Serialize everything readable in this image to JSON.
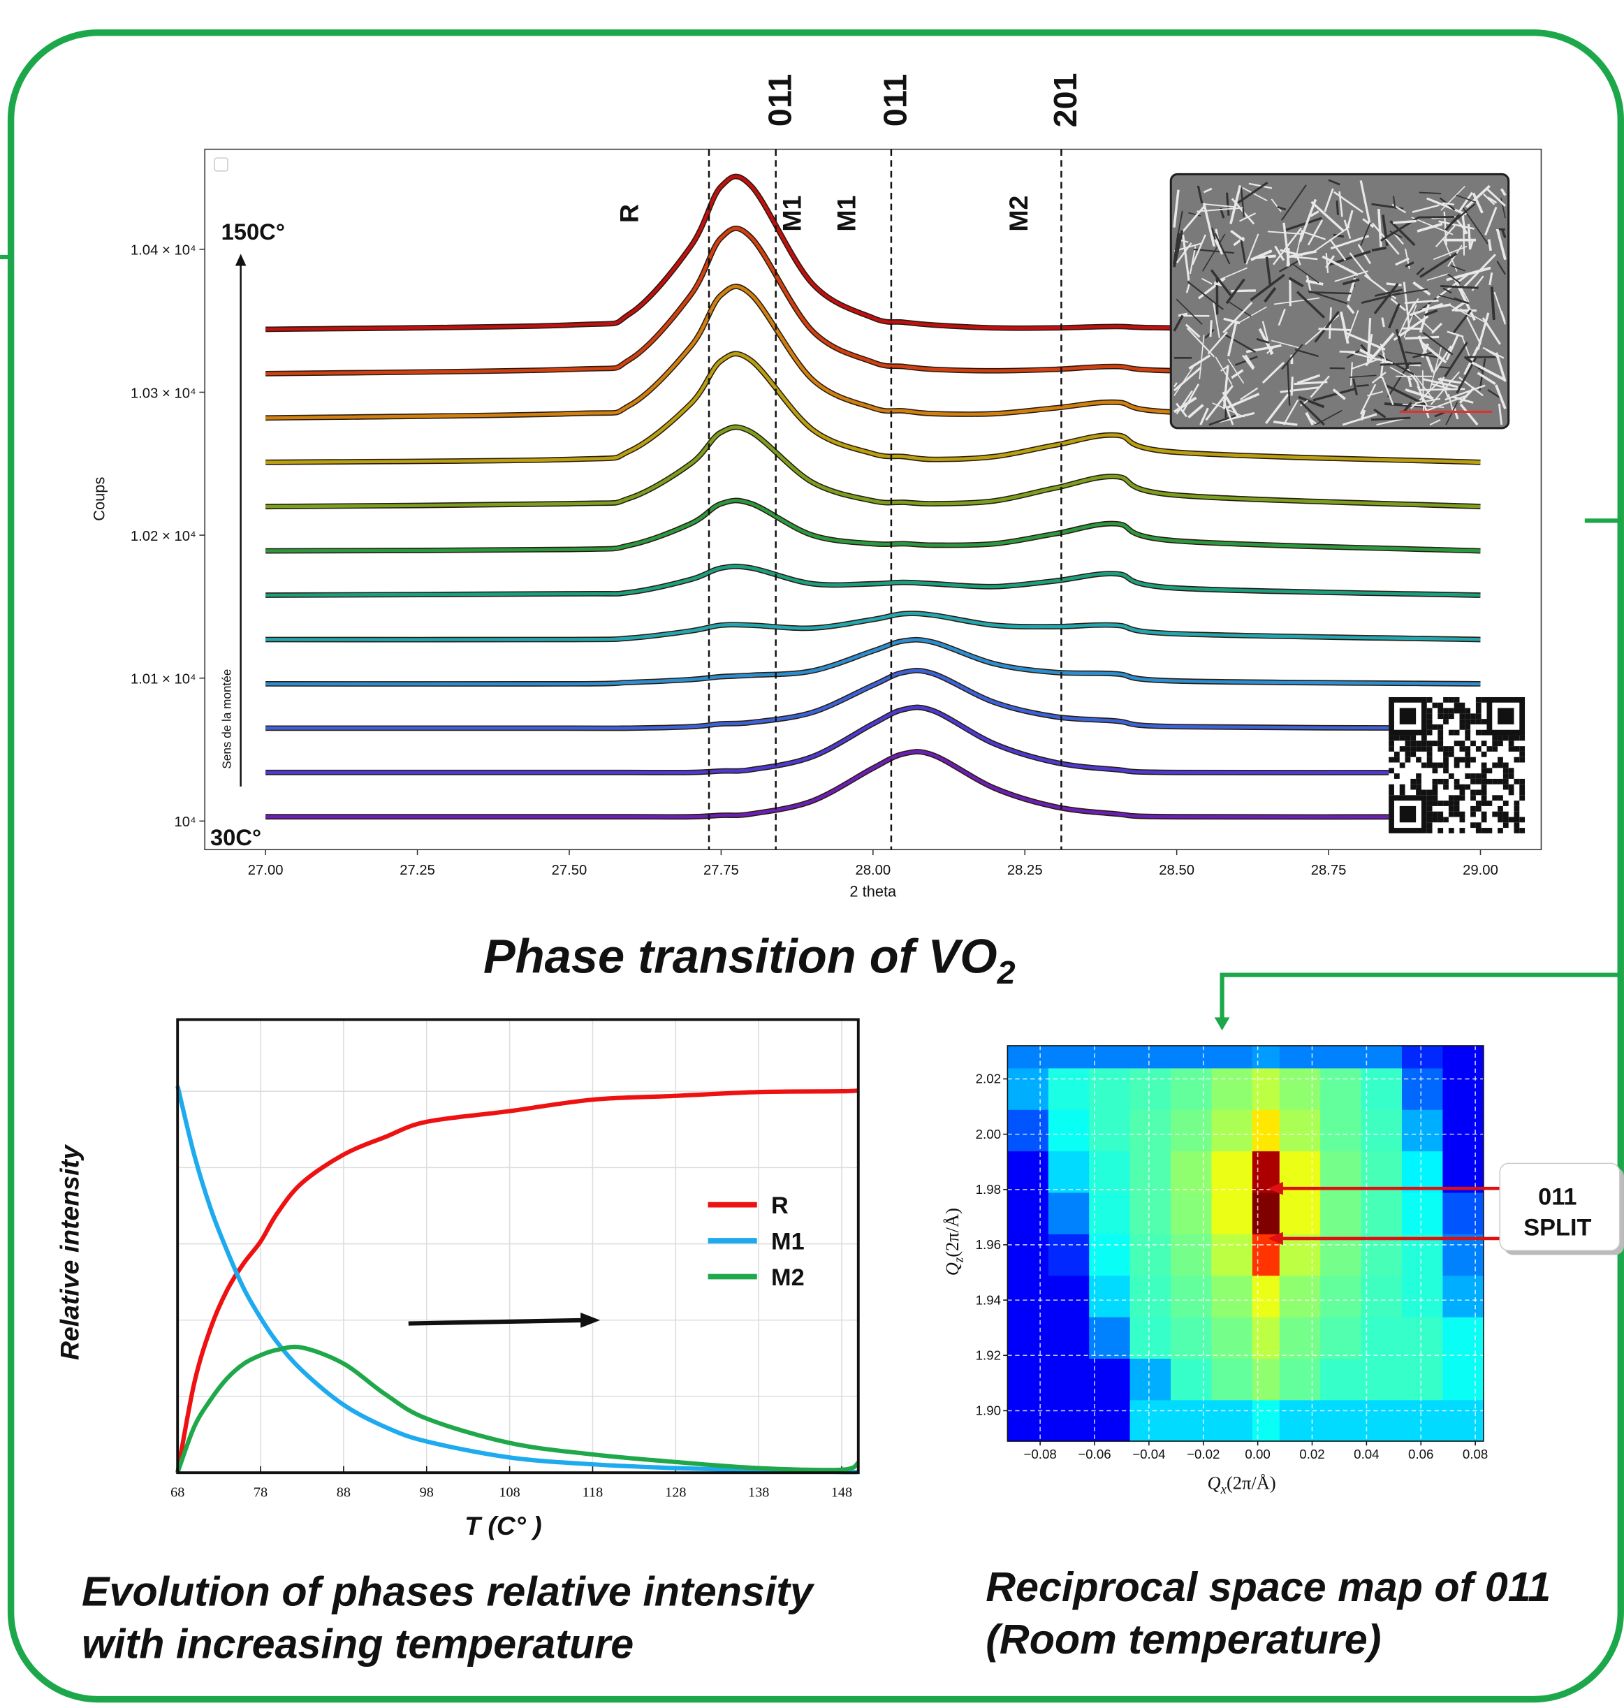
{
  "chart_data": [
    {
      "type": "line",
      "title": [
        "Phase transition of VO",
        "2"
      ],
      "xlabel": "2 theta",
      "ylabel": "Coups",
      "x": [
        27.0,
        27.5,
        27.6,
        27.7,
        27.75,
        27.8,
        27.9,
        28.0,
        28.05,
        28.1,
        28.2,
        28.3,
        28.4,
        28.5,
        29.0
      ],
      "xlim": [
        26.9,
        29.1
      ],
      "ylim": [
        9980,
        10470
      ],
      "xticks": [
        {
          "value": 27,
          "label": "27.00"
        },
        27.25,
        {
          "value": 27.5,
          "label": "27.50"
        },
        27.75,
        {
          "value": 28,
          "label": "28.00"
        },
        28.25,
        {
          "value": 28.5,
          "label": "28.50"
        },
        28.75,
        {
          "value": 29,
          "label": "29.00"
        }
      ],
      "yticks": [
        {
          "value": 10000,
          "label": "10⁴"
        },
        {
          "value": 10100,
          "label": "1.01 × 10⁴"
        },
        {
          "value": 10200,
          "label": "1.02 × 10⁴"
        },
        {
          "value": 10300,
          "label": "1.03 × 10⁴"
        },
        {
          "value": 10400,
          "label": "1.04 × 10⁴"
        }
      ],
      "grid": false,
      "series": [
        {
          "color": "#6a1fb5",
          "values": [
            10003,
            10003,
            10003,
            10003,
            10004,
            10005,
            10014,
            10037,
            10047,
            10046,
            10023,
            10010,
            10005,
            10003,
            10003
          ]
        },
        {
          "color": "#4b3bd0",
          "values": [
            10034,
            10034,
            10034,
            10034,
            10035,
            10036,
            10045,
            10068,
            10078,
            10077,
            10054,
            10041,
            10036,
            10034,
            10034
          ]
        },
        {
          "color": "#3a63d8",
          "values": [
            10065,
            10065,
            10065,
            10066,
            10068,
            10069,
            10076,
            10095,
            10104,
            10103,
            10083,
            10073,
            10070,
            10066,
            10065
          ]
        },
        {
          "color": "#2a8ed0",
          "values": [
            10096,
            10096,
            10097,
            10099,
            10101,
            10102,
            10105,
            10119,
            10126,
            10125,
            10110,
            10104,
            10103,
            10098,
            10096
          ]
        },
        {
          "color": "#22a6b0",
          "values": [
            10127,
            10127,
            10128,
            10133,
            10137,
            10137,
            10135,
            10141,
            10145,
            10144,
            10137,
            10136,
            10137,
            10131,
            10127
          ]
        },
        {
          "color": "#1aa080",
          "values": [
            10158,
            10159,
            10160,
            10169,
            10177,
            10177,
            10166,
            10166,
            10167,
            10166,
            10164,
            10168,
            10173,
            10163,
            10158
          ]
        },
        {
          "color": "#2a9a40",
          "values": [
            10189,
            10190,
            10193,
            10208,
            10222,
            10222,
            10200,
            10194,
            10194,
            10193,
            10194,
            10201,
            10208,
            10196,
            10189
          ]
        },
        {
          "color": "#7aa020",
          "values": [
            10220,
            10222,
            10226,
            10250,
            10272,
            10272,
            10237,
            10224,
            10223,
            10222,
            10224,
            10233,
            10241,
            10228,
            10220
          ]
        },
        {
          "color": "#b8a010",
          "values": [
            10251,
            10253,
            10259,
            10292,
            10322,
            10322,
            10274,
            10257,
            10255,
            10253,
            10255,
            10263,
            10270,
            10258,
            10251
          ]
        },
        {
          "color": "#d08010",
          "values": [
            10282,
            10285,
            10291,
            10332,
            10368,
            10368,
            10309,
            10289,
            10287,
            10285,
            10285,
            10289,
            10293,
            10286,
            10282
          ]
        },
        {
          "color": "#d04010",
          "values": [
            10313,
            10316,
            10323,
            10368,
            10408,
            10408,
            10343,
            10321,
            10318,
            10316,
            10315,
            10316,
            10318,
            10315,
            10313
          ]
        },
        {
          "color": "#c01010",
          "values": [
            10344,
            10347,
            10355,
            10402,
            10444,
            10444,
            10376,
            10352,
            10349,
            10347,
            10345,
            10345,
            10346,
            10345,
            10344
          ]
        }
      ],
      "reference_lines": [
        {
          "x": 27.73,
          "label": "R"
        },
        {
          "x": 27.84,
          "label": "M1",
          "top_label": "011"
        },
        {
          "x": 28.03,
          "label": "M1",
          "top_label": "011"
        },
        {
          "x": 28.31,
          "label": "M2",
          "top_label": "201"
        }
      ],
      "annotations": {
        "top_temp": "150C°",
        "bottom_temp": "30C°",
        "arrow_label": "Sens de la montée"
      }
    },
    {
      "type": "line",
      "caption": [
        "Evolution of phases relative intensity",
        "with increasing temperature"
      ],
      "xlabel": "T (C° )",
      "ylabel": "Relative intensity",
      "x": [
        68,
        70,
        72,
        74,
        76,
        78,
        80,
        83,
        88,
        93,
        98,
        108,
        118,
        128,
        138,
        148,
        150
      ],
      "xlim": [
        68,
        150
      ],
      "ylim": [
        0,
        5.94
      ],
      "xticks": [
        68,
        78,
        88,
        98,
        108,
        118,
        128,
        138,
        148
      ],
      "yticks": [
        0,
        1,
        2,
        3,
        4,
        5
      ],
      "ytick_labels": false,
      "grid": true,
      "legend": "right",
      "series": [
        {
          "name": "R",
          "color": "#ee1111",
          "values": [
            0,
            1.17,
            1.9,
            2.4,
            2.75,
            3.03,
            3.4,
            3.8,
            4.17,
            4.4,
            4.6,
            4.74,
            4.89,
            4.94,
            4.99,
            5.0,
            5.01
          ]
        },
        {
          "name": "M1",
          "color": "#1eaaee",
          "values": [
            5.07,
            4.17,
            3.46,
            2.9,
            2.41,
            2.03,
            1.71,
            1.34,
            0.89,
            0.6,
            0.41,
            0.2,
            0.11,
            0.06,
            0.03,
            0.01,
            0.01
          ]
        },
        {
          "name": "M2",
          "color": "#1fa84a",
          "values": [
            0,
            0.6,
            0.96,
            1.24,
            1.43,
            1.54,
            1.61,
            1.64,
            1.43,
            1.03,
            0.71,
            0.39,
            0.24,
            0.14,
            0.06,
            0.04,
            0.13
          ]
        }
      ]
    },
    {
      "type": "heatmap",
      "caption": [
        "Reciprocal space map of 011",
        "(Room temperature)"
      ],
      "xlabel": [
        "Q",
        "x",
        "(2π/Å)"
      ],
      "ylabel": [
        "Q",
        "z",
        "(2π/Å)"
      ],
      "xlim": [
        -0.092,
        0.083
      ],
      "ylim": [
        1.889,
        2.032
      ],
      "xticks": [
        {
          "value": -0.08,
          "label": "−0.08"
        },
        {
          "value": -0.06,
          "label": "−0.06"
        },
        {
          "value": -0.04,
          "label": "−0.04"
        },
        {
          "value": -0.02,
          "label": "−0.02"
        },
        {
          "value": 0,
          "label": "0.00"
        },
        0.02,
        0.04,
        0.06,
        0.08
      ],
      "yticks": [
        {
          "value": 1.9,
          "label": "1.90"
        },
        1.92,
        1.94,
        1.96,
        1.98,
        {
          "value": 2.0,
          "label": "2.00"
        },
        2.02
      ],
      "grid": true,
      "colormap": "jet",
      "x_edges": [
        -0.092,
        -0.077,
        -0.062,
        -0.047,
        -0.032,
        -0.017,
        -0.002,
        0.008,
        0.023,
        0.038,
        0.053,
        0.068,
        0.083
      ],
      "y_edges": [
        1.889,
        1.904,
        1.919,
        1.934,
        1.949,
        1.964,
        1.979,
        1.994,
        2.009,
        2.024,
        2.032
      ],
      "z": [
        [
          0,
          0,
          0,
          0.25,
          0.25,
          0.25,
          0.3,
          0.25,
          0.25,
          0.25,
          0.25,
          0.25
        ],
        [
          0,
          0,
          0,
          0.2,
          0.35,
          0.4,
          0.45,
          0.4,
          0.35,
          0.35,
          0.35,
          0.3
        ],
        [
          0,
          0,
          0.15,
          0.35,
          0.38,
          0.42,
          0.5,
          0.42,
          0.38,
          0.35,
          0.35,
          0.3
        ],
        [
          0,
          0,
          0.25,
          0.36,
          0.4,
          0.45,
          0.55,
          0.45,
          0.4,
          0.36,
          0.33,
          0.2
        ],
        [
          0,
          0.05,
          0.3,
          0.37,
          0.42,
          0.5,
          0.8,
          0.5,
          0.42,
          0.37,
          0.33,
          0.15
        ],
        [
          0,
          0.15,
          0.32,
          0.38,
          0.44,
          0.55,
          1.0,
          0.55,
          0.42,
          0.37,
          0.3,
          0.1
        ],
        [
          0,
          0.25,
          0.33,
          0.38,
          0.45,
          0.55,
          0.95,
          0.55,
          0.42,
          0.37,
          0.28,
          0
        ],
        [
          0.1,
          0.3,
          0.35,
          0.38,
          0.42,
          0.48,
          0.6,
          0.48,
          0.4,
          0.36,
          0.2,
          0
        ],
        [
          0.2,
          0.32,
          0.35,
          0.37,
          0.4,
          0.45,
          0.5,
          0.45,
          0.4,
          0.35,
          0.12,
          0
        ],
        [
          0.15,
          0.15,
          0.15,
          0.15,
          0.15,
          0.15,
          0.18,
          0.15,
          0.15,
          0.15,
          0.05,
          0
        ]
      ],
      "callout": [
        "011",
        "SPLIT"
      ]
    }
  ]
}
